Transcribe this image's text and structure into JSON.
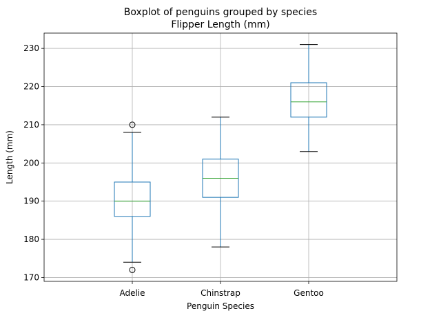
{
  "chart_data": {
    "type": "boxplot",
    "title": "Boxplot of penguins grouped by species",
    "subtitle": "Flipper Length (mm)",
    "xlabel": "Penguin Species",
    "ylabel": "Length (mm)",
    "ylim": [
      169,
      234
    ],
    "yticks": [
      170,
      180,
      190,
      200,
      210,
      220,
      230
    ],
    "grid": true,
    "box_color": "#1f77b4",
    "median_color": "#2ca02c",
    "categories": [
      "Adelie",
      "Chinstrap",
      "Gentoo"
    ],
    "boxes": [
      {
        "label": "Adelie",
        "whislo": 174,
        "q1": 186,
        "median": 190,
        "q3": 195,
        "whishi": 208,
        "fliers": [
          210,
          172
        ]
      },
      {
        "label": "Chinstrap",
        "whislo": 178,
        "q1": 191,
        "median": 196,
        "q3": 201,
        "whishi": 212,
        "fliers": []
      },
      {
        "label": "Gentoo",
        "whislo": 203,
        "q1": 212,
        "median": 216,
        "q3": 221,
        "whishi": 231,
        "fliers": []
      }
    ]
  }
}
